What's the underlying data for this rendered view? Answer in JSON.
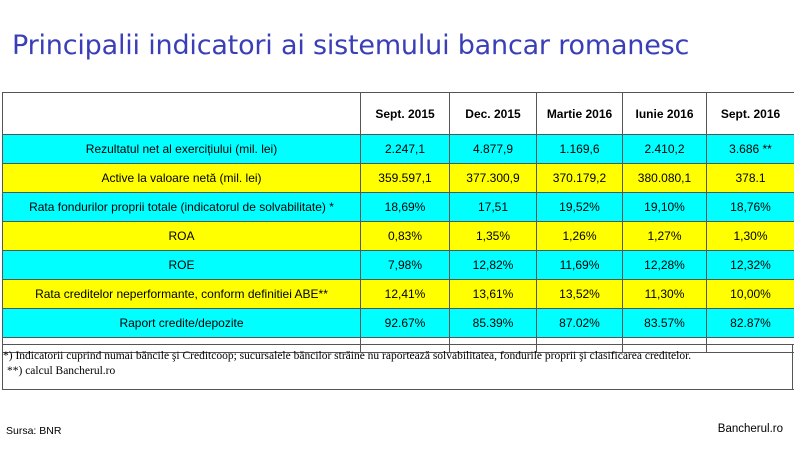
{
  "title": "Principalii indicatori ai sistemului bancar romanesc",
  "table": {
    "columns": [
      "",
      "Sept. 2015",
      "Dec. 2015",
      "Martie 2016",
      "Iunie 2016",
      "Sept. 2016"
    ],
    "rows": [
      {
        "label": "Rezultatul net al exercițiului (mil. lei)",
        "values": [
          "2.247,1",
          "4.877,9",
          "1.169,6",
          "2.410,2",
          "3.686 **"
        ],
        "color": "#00ffff"
      },
      {
        "label": "Active la valoare netă (mil. lei)",
        "values": [
          "359.597,1",
          "377.300,9",
          "370.179,2",
          "380.080,1",
          "378.1"
        ],
        "color": "#ffff00"
      },
      {
        "label": "Rata fondurilor proprii totale (indicatorul de solvabilitate) *",
        "values": [
          "18,69%",
          "17,51",
          "19,52%",
          "19,10%",
          "18,76%"
        ],
        "color": "#00ffff"
      },
      {
        "label": "ROA",
        "values": [
          "0,83%",
          "1,35%",
          "1,26%",
          "1,27%",
          "1,30%"
        ],
        "color": "#ffff00"
      },
      {
        "label": "ROE",
        "values": [
          "7,98%",
          "12,82%",
          "11,69%",
          "12,28%",
          "12,32%"
        ],
        "color": "#00ffff"
      },
      {
        "label": "Rata creditelor neperformante, conform definitiei ABE**",
        "values": [
          "12,41%",
          "13,61%",
          "13,52%",
          "11,30%",
          "10,00%"
        ],
        "color": "#ffff00"
      },
      {
        "label": "Raport credite/depozite",
        "values": [
          "92.67%",
          "85.39%",
          "87.02%",
          "83.57%",
          "82.87%"
        ],
        "color": "#00ffff"
      }
    ]
  },
  "notes": {
    "line1": "*) Indicatorii cuprind numai băncile şi Creditcoop; sucursalele băncilor străine nu raportează solvabilitatea, fondurile proprii şi clasificarea creditelor.",
    "line2": "**) calcul Bancherul.ro"
  },
  "footer": {
    "source": "Sursa: BNR",
    "brand": "Bancherul.ro"
  }
}
